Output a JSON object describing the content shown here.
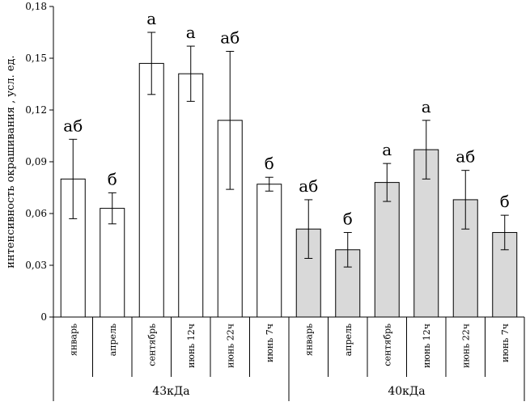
{
  "chart_data": {
    "type": "bar",
    "ylabel": "интенсивность окрашивания , усл. ед.",
    "ylim": [
      0,
      0.18
    ],
    "yticks": [
      0,
      0.03,
      0.06,
      0.09,
      0.12,
      0.15,
      0.18
    ],
    "ytick_labels": [
      "0",
      "0,03",
      "0,06",
      "0,09",
      "0,12",
      "0,15",
      "0,18"
    ],
    "grid": false,
    "groups": [
      {
        "name": "43кДа",
        "color": "#ffffff",
        "categories": [
          "январь",
          "апрель",
          "сентябрь",
          "июнь 12ч",
          "июнь 22ч",
          "июнь 7ч"
        ],
        "values": [
          0.08,
          0.063,
          0.147,
          0.141,
          0.114,
          0.077
        ],
        "errors": [
          0.023,
          0.009,
          0.018,
          0.016,
          0.04,
          0.004
        ],
        "significance": [
          "аб",
          "б",
          "а",
          "а",
          "аб",
          "б"
        ]
      },
      {
        "name": "40кДа",
        "color": "#d9d9d9",
        "categories": [
          "январь",
          "апрель",
          "сентябрь",
          "июнь 12ч",
          "июнь 22ч",
          "июнь 7ч"
        ],
        "values": [
          0.051,
          0.039,
          0.078,
          0.097,
          0.068,
          0.049
        ],
        "errors": [
          0.017,
          0.01,
          0.011,
          0.017,
          0.017,
          0.01
        ],
        "significance": [
          "аб",
          "б",
          "а",
          "а",
          "аб",
          "б"
        ]
      }
    ]
  }
}
